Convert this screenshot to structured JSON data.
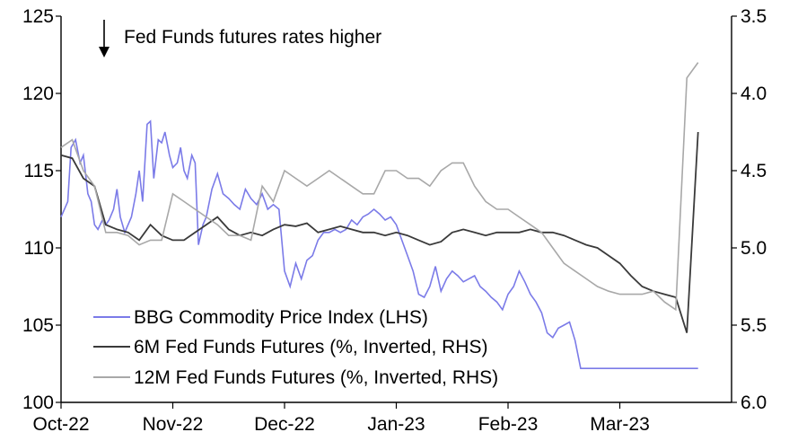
{
  "chart_data": {
    "type": "line",
    "title": "",
    "annotation": "Fed Funds futures rates higher",
    "x_ticks": [
      "Oct-22",
      "Nov-22",
      "Dec-22",
      "Jan-23",
      "Feb-23",
      "Mar-23"
    ],
    "y_left": {
      "label": "",
      "range": [
        100,
        125
      ],
      "ticks": [
        "100",
        "105",
        "110",
        "115",
        "120",
        "125"
      ]
    },
    "y_right": {
      "label": "",
      "range": [
        3.5,
        6.0
      ],
      "inverted": true,
      "ticks": [
        "3.5",
        "4.0",
        "4.5",
        "5.0",
        "5.5",
        "6.0"
      ]
    },
    "x_range_months": [
      0,
      6
    ],
    "legend_position": "bottom-left",
    "series": [
      {
        "name": "BBG Commodity Price Index (LHS)",
        "axis": "left",
        "color": "#7b7be8",
        "x": [
          0.0,
          0.06,
          0.09,
          0.13,
          0.17,
          0.2,
          0.24,
          0.27,
          0.3,
          0.33,
          0.37,
          0.4,
          0.43,
          0.47,
          0.5,
          0.53,
          0.57,
          0.6,
          0.63,
          0.67,
          0.7,
          0.73,
          0.77,
          0.8,
          0.83,
          0.87,
          0.9,
          0.93,
          0.97,
          1.0,
          1.04,
          1.07,
          1.1,
          1.13,
          1.17,
          1.2,
          1.23,
          1.27,
          1.3,
          1.35,
          1.4,
          1.45,
          1.5,
          1.55,
          1.6,
          1.65,
          1.7,
          1.75,
          1.8,
          1.85,
          1.9,
          1.95,
          2.0,
          2.05,
          2.1,
          2.15,
          2.2,
          2.25,
          2.3,
          2.35,
          2.4,
          2.45,
          2.5,
          2.55,
          2.6,
          2.65,
          2.7,
          2.75,
          2.8,
          2.85,
          2.9,
          2.95,
          3.0,
          3.05,
          3.1,
          3.15,
          3.2,
          3.25,
          3.3,
          3.35,
          3.4,
          3.45,
          3.5,
          3.55,
          3.6,
          3.65,
          3.7,
          3.75,
          3.8,
          3.85,
          3.9,
          3.95,
          4.0,
          4.05,
          4.1,
          4.15,
          4.2,
          4.25,
          4.3,
          4.35,
          4.4,
          4.45,
          4.5,
          4.55,
          4.6,
          4.65,
          4.7,
          4.75,
          4.8,
          4.85,
          4.9,
          4.95,
          5.0,
          5.05,
          5.1,
          5.15,
          5.2,
          5.25,
          5.3,
          5.35,
          5.4,
          5.45,
          5.5,
          5.55,
          5.6,
          5.65,
          5.7
        ],
        "values": [
          112.0,
          113.0,
          116.5,
          117.0,
          115.5,
          116.0,
          113.5,
          113.0,
          111.5,
          111.2,
          111.8,
          111.5,
          111.8,
          112.5,
          113.8,
          112.0,
          111.0,
          111.5,
          112.0,
          113.5,
          115.0,
          113.0,
          118.0,
          118.2,
          114.5,
          117.0,
          116.8,
          117.5,
          116.0,
          115.2,
          115.5,
          116.5,
          115.0,
          114.5,
          116.0,
          115.5,
          110.2,
          111.5,
          112.0,
          113.8,
          114.8,
          113.5,
          113.2,
          112.8,
          112.5,
          113.8,
          113.2,
          112.8,
          113.5,
          112.5,
          112.8,
          112.5,
          108.5,
          107.5,
          109.0,
          108.0,
          109.2,
          109.5,
          110.5,
          111.0,
          111.0,
          111.2,
          111.0,
          111.2,
          111.8,
          111.5,
          112.0,
          112.2,
          112.5,
          112.2,
          111.8,
          112.0,
          111.5,
          110.5,
          109.5,
          108.5,
          107.0,
          106.8,
          107.5,
          108.8,
          107.2,
          108.0,
          108.5,
          108.2,
          107.8,
          108.0,
          108.2,
          107.5,
          107.2,
          106.8,
          106.5,
          106.0,
          107.0,
          107.5,
          108.5,
          107.8,
          107.0,
          106.5,
          105.8,
          104.5,
          104.2,
          104.8,
          105.0,
          105.2,
          104.0,
          102.2,
          102.2,
          102.2,
          102.2,
          102.2,
          102.2,
          102.2,
          102.2,
          102.2,
          102.2,
          102.2,
          102.2,
          102.2,
          102.2,
          102.2,
          102.2,
          102.2,
          102.2,
          102.2,
          102.2,
          102.2,
          102.2
        ]
      },
      {
        "name": "6M Fed Funds Futures (%, Inverted, RHS)",
        "axis": "right",
        "color": "#3a3a3a",
        "x": [
          0.0,
          0.1,
          0.2,
          0.3,
          0.4,
          0.5,
          0.6,
          0.7,
          0.8,
          0.9,
          1.0,
          1.1,
          1.2,
          1.3,
          1.4,
          1.5,
          1.6,
          1.7,
          1.8,
          1.9,
          2.0,
          2.1,
          2.2,
          2.3,
          2.4,
          2.5,
          2.6,
          2.7,
          2.8,
          2.9,
          3.0,
          3.1,
          3.2,
          3.3,
          3.4,
          3.5,
          3.6,
          3.7,
          3.8,
          3.9,
          4.0,
          4.1,
          4.2,
          4.3,
          4.4,
          4.5,
          4.6,
          4.7,
          4.8,
          4.9,
          5.0,
          5.1,
          5.2,
          5.3,
          5.4,
          5.5,
          5.6,
          5.7
        ],
        "values": [
          4.4,
          4.42,
          4.55,
          4.6,
          4.85,
          4.88,
          4.9,
          4.95,
          4.85,
          4.92,
          4.95,
          4.95,
          4.9,
          4.85,
          4.8,
          4.88,
          4.92,
          4.9,
          4.92,
          4.88,
          4.85,
          4.86,
          4.84,
          4.9,
          4.88,
          4.86,
          4.88,
          4.9,
          4.9,
          4.92,
          4.9,
          4.92,
          4.95,
          4.98,
          4.96,
          4.9,
          4.88,
          4.9,
          4.92,
          4.9,
          4.9,
          4.9,
          4.88,
          4.9,
          4.9,
          4.92,
          4.95,
          4.98,
          5.0,
          5.05,
          5.1,
          5.18,
          5.25,
          5.28,
          5.3,
          5.32,
          5.55,
          4.25
        ]
      },
      {
        "name": "12M Fed Funds Futures (%, Inverted, RHS)",
        "axis": "right",
        "color": "#a8a8a8",
        "x": [
          0.0,
          0.1,
          0.2,
          0.3,
          0.4,
          0.5,
          0.6,
          0.7,
          0.8,
          0.9,
          1.0,
          1.1,
          1.2,
          1.3,
          1.4,
          1.5,
          1.6,
          1.7,
          1.8,
          1.9,
          2.0,
          2.1,
          2.2,
          2.3,
          2.4,
          2.5,
          2.6,
          2.7,
          2.8,
          2.9,
          3.0,
          3.1,
          3.2,
          3.3,
          3.4,
          3.5,
          3.6,
          3.7,
          3.8,
          3.9,
          4.0,
          4.1,
          4.2,
          4.3,
          4.4,
          4.5,
          4.6,
          4.7,
          4.8,
          4.9,
          5.0,
          5.1,
          5.2,
          5.3,
          5.4,
          5.5,
          5.6,
          5.7
        ],
        "values": [
          4.35,
          4.3,
          4.5,
          4.6,
          4.9,
          4.9,
          4.92,
          4.98,
          4.95,
          4.95,
          4.65,
          4.7,
          4.75,
          4.8,
          4.85,
          4.92,
          4.92,
          4.95,
          4.6,
          4.7,
          4.5,
          4.55,
          4.6,
          4.55,
          4.5,
          4.55,
          4.6,
          4.65,
          4.65,
          4.5,
          4.5,
          4.55,
          4.55,
          4.6,
          4.5,
          4.45,
          4.45,
          4.6,
          4.7,
          4.75,
          4.75,
          4.8,
          4.85,
          4.9,
          5.0,
          5.1,
          5.15,
          5.2,
          5.25,
          5.28,
          5.3,
          5.3,
          5.3,
          5.28,
          5.35,
          5.4,
          3.9,
          3.8
        ]
      }
    ]
  }
}
